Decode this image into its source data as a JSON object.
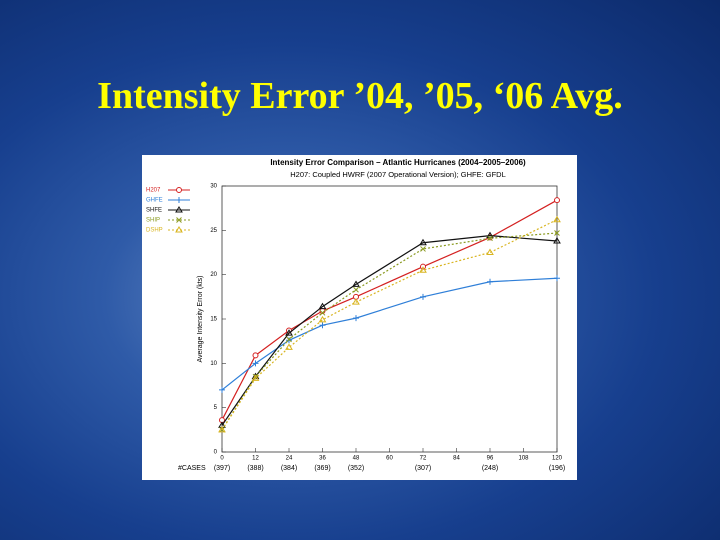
{
  "slide_title": "Intensity Error ’04, ’05, ‘06 Avg.",
  "chart_data": {
    "type": "line",
    "title": "Intensity Error Comparison – Atlantic Hurricanes (2004–2005–2006)",
    "subtitle": "H207: Coupled HWRF (2007 Operational Version); GHFE: GFDL",
    "y_label": "Average Intensity Error (kts)",
    "x": [
      0,
      12,
      24,
      36,
      48,
      72,
      96,
      120
    ],
    "xlim": [
      0,
      120
    ],
    "xticks": [
      0,
      12,
      24,
      36,
      48,
      60,
      72,
      84,
      96,
      108,
      120
    ],
    "ylim": [
      0,
      30
    ],
    "yticks": [
      0,
      5,
      10,
      15,
      20,
      25,
      30
    ],
    "cases_label": "#CASES",
    "cases": [
      "(397)",
      "(388)",
      "(384)",
      "(369)",
      "(352)",
      null,
      "(307)",
      null,
      "(248)",
      null,
      "(196)"
    ],
    "legend": "upper left",
    "series": [
      {
        "name": "H207",
        "color": "#d42020",
        "marker": "circle",
        "dash": false,
        "values": [
          3.6,
          10.9,
          13.7,
          15.9,
          17.5,
          20.9,
          24.2,
          28.4
        ]
      },
      {
        "name": "GHFE",
        "color": "#2f7fd8",
        "marker": "plus",
        "dash": false,
        "values": [
          7.0,
          10.0,
          12.6,
          14.3,
          15.1,
          17.5,
          19.2,
          19.6
        ]
      },
      {
        "name": "SHFE",
        "color": "#111111",
        "marker": "triangle",
        "dash": false,
        "values": [
          3.0,
          8.5,
          13.4,
          16.4,
          18.9,
          23.6,
          24.4,
          23.8
        ]
      },
      {
        "name": "SHIP",
        "color": "#8a9a20",
        "marker": "x",
        "dash": true,
        "values": [
          2.5,
          8.5,
          12.7,
          15.7,
          18.3,
          22.9,
          24.1,
          24.7
        ]
      },
      {
        "name": "DSHP",
        "color": "#d9b520",
        "marker": "triangle",
        "dash": true,
        "values": [
          2.5,
          8.3,
          11.8,
          14.9,
          16.9,
          20.5,
          22.5,
          26.2
        ]
      }
    ]
  }
}
